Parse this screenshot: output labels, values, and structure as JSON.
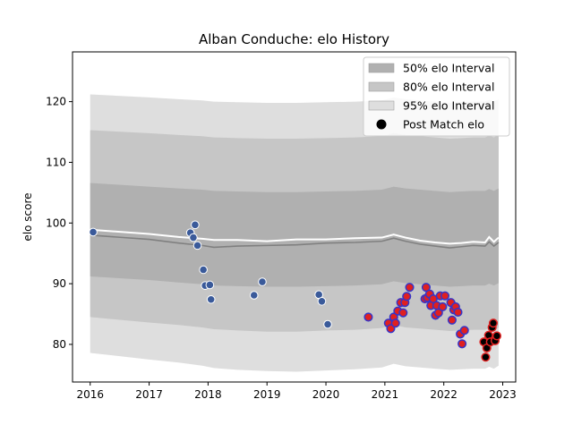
{
  "chart_data": {
    "type": "scatter",
    "title": "Alban Conduche: elo History",
    "xlabel": "",
    "ylabel": "elo score",
    "xlim": [
      2015.7,
      2023.22
    ],
    "ylim": [
      73.8,
      128.2
    ],
    "x_ticks": [
      2016,
      2017,
      2018,
      2019,
      2020,
      2021,
      2022,
      2023
    ],
    "x_tick_labels": [
      "2016",
      "2017",
      "2018",
      "2019",
      "2020",
      "2021",
      "2022",
      "2023"
    ],
    "y_ticks": [
      80,
      90,
      100,
      110,
      120
    ],
    "y_tick_labels": [
      "80",
      "90",
      "100",
      "110",
      "120"
    ],
    "grid": false,
    "legend": {
      "placement": "top-right",
      "entries": [
        {
          "label": "50% elo Interval",
          "kind": "patch",
          "color": "#b0b0b0"
        },
        {
          "label": "80% elo Interval",
          "kind": "patch",
          "color": "#c6c6c6"
        },
        {
          "label": "95% elo Interval",
          "kind": "patch",
          "color": "#dedede"
        },
        {
          "label": "Post Match elo",
          "kind": "marker",
          "color": "#000000"
        }
      ]
    },
    "bands": {
      "x": [
        2016.0,
        2017.0,
        2017.5,
        2017.9,
        2018.1,
        2018.5,
        2019.0,
        2019.5,
        2020.0,
        2020.5,
        2020.95,
        2021.15,
        2021.35,
        2021.6,
        2021.85,
        2022.1,
        2022.3,
        2022.5,
        2022.7,
        2022.77,
        2022.85,
        2022.93
      ],
      "p95_upper": [
        121.2,
        120.7,
        120.4,
        120.2,
        120.0,
        119.9,
        119.8,
        119.8,
        119.9,
        120.0,
        120.2,
        120.7,
        120.4,
        120.2,
        120.0,
        119.8,
        119.9,
        120.0,
        120.0,
        120.3,
        120.0,
        120.4
      ],
      "p80_upper": [
        115.3,
        114.8,
        114.5,
        114.3,
        114.1,
        114.0,
        113.9,
        113.9,
        114.0,
        114.1,
        114.3,
        114.8,
        114.5,
        114.3,
        114.1,
        113.9,
        114.0,
        114.1,
        114.1,
        114.4,
        114.1,
        114.5
      ],
      "p50_upper": [
        106.6,
        106.0,
        105.7,
        105.5,
        105.3,
        105.2,
        105.1,
        105.1,
        105.2,
        105.3,
        105.5,
        106.0,
        105.7,
        105.5,
        105.3,
        105.1,
        105.2,
        105.3,
        105.3,
        105.6,
        105.3,
        105.7
      ],
      "p50_lower": [
        91.2,
        90.6,
        90.2,
        89.9,
        89.7,
        89.6,
        89.5,
        89.5,
        89.6,
        89.7,
        89.9,
        90.4,
        90.1,
        89.9,
        89.7,
        89.5,
        89.6,
        89.7,
        89.7,
        90.0,
        89.7,
        90.1
      ],
      "p80_lower": [
        84.5,
        83.6,
        83.2,
        82.8,
        82.5,
        82.3,
        82.1,
        82.1,
        82.3,
        82.4,
        82.7,
        83.2,
        82.8,
        82.6,
        82.4,
        82.2,
        82.3,
        82.4,
        82.4,
        82.7,
        82.4,
        82.8
      ],
      "p95_lower": [
        78.6,
        77.5,
        77.0,
        76.5,
        76.1,
        75.8,
        75.6,
        75.5,
        75.7,
        75.9,
        76.2,
        76.8,
        76.4,
        76.2,
        76.0,
        75.8,
        75.9,
        76.0,
        76.0,
        76.3,
        76.0,
        76.5
      ]
    },
    "series": [
      {
        "kind": "line",
        "color": "#ffffff",
        "x": [
          2016.0,
          2017.0,
          2017.5,
          2017.9,
          2018.1,
          2018.5,
          2019.0,
          2019.5,
          2020.0,
          2020.5,
          2020.95,
          2021.15,
          2021.35,
          2021.6,
          2021.85,
          2022.1,
          2022.3,
          2022.5,
          2022.7,
          2022.77,
          2022.85,
          2022.93
        ],
        "y": [
          98.9,
          98.2,
          97.7,
          97.4,
          97.2,
          97.2,
          97.0,
          97.3,
          97.3,
          97.5,
          97.6,
          98.1,
          97.6,
          97.1,
          96.8,
          96.6,
          96.7,
          96.9,
          96.8,
          97.7,
          96.9,
          97.6
        ]
      },
      {
        "kind": "line",
        "color": "#808080",
        "x": [
          2016.0,
          2017.0,
          2017.5,
          2017.9,
          2018.1,
          2018.5,
          2019.0,
          2019.5,
          2020.0,
          2020.5,
          2020.95,
          2021.15,
          2021.35,
          2021.6,
          2021.85,
          2022.1,
          2022.3,
          2022.5,
          2022.7,
          2022.77,
          2022.85,
          2022.93
        ],
        "y": [
          98.0,
          97.3,
          96.7,
          96.3,
          96.0,
          96.2,
          96.3,
          96.4,
          96.7,
          96.8,
          97.0,
          97.5,
          97.0,
          96.5,
          96.2,
          95.9,
          96.1,
          96.3,
          96.2,
          96.9,
          96.2,
          96.8
        ]
      },
      {
        "kind": "points",
        "style": "blue",
        "x": [
          2016.05,
          2017.7,
          2017.75,
          2017.78,
          2017.82,
          2017.92,
          2017.95,
          2018.03,
          2018.05,
          2018.78,
          2018.92,
          2019.88,
          2019.93,
          2020.03
        ],
        "y": [
          98.5,
          98.4,
          97.6,
          99.7,
          96.3,
          92.3,
          89.7,
          89.8,
          87.4,
          88.1,
          90.3,
          88.2,
          87.1,
          83.3
        ]
      },
      {
        "kind": "points",
        "style": "red",
        "x": [
          2020.72,
          2021.06,
          2021.1,
          2021.15,
          2021.18,
          2021.22,
          2021.27,
          2021.31,
          2021.34,
          2021.37,
          2021.42,
          2021.68,
          2021.7,
          2021.72,
          2021.76,
          2021.78,
          2021.82,
          2021.86,
          2021.88,
          2021.91,
          2021.94,
          2021.98,
          2022.02,
          2022.12,
          2022.14,
          2022.17,
          2022.2,
          2022.24,
          2022.28,
          2022.31,
          2022.35
        ],
        "y": [
          84.5,
          83.5,
          82.6,
          84.5,
          83.5,
          85.5,
          86.9,
          85.2,
          86.9,
          87.9,
          89.4,
          87.5,
          89.4,
          87.7,
          88.3,
          86.4,
          87.5,
          84.8,
          86.4,
          85.2,
          88.0,
          86.2,
          88.0,
          86.9,
          84.0,
          85.7,
          86.2,
          85.3,
          81.7,
          80.1,
          82.3
        ]
      },
      {
        "kind": "points",
        "style": "black",
        "x": [
          2022.68,
          2022.71,
          2022.73,
          2022.76,
          2022.79,
          2022.82,
          2022.84,
          2022.87,
          2022.9
        ],
        "y": [
          80.4,
          77.9,
          79.4,
          81.5,
          80.4,
          82.8,
          83.5,
          80.6,
          81.4
        ]
      }
    ]
  }
}
